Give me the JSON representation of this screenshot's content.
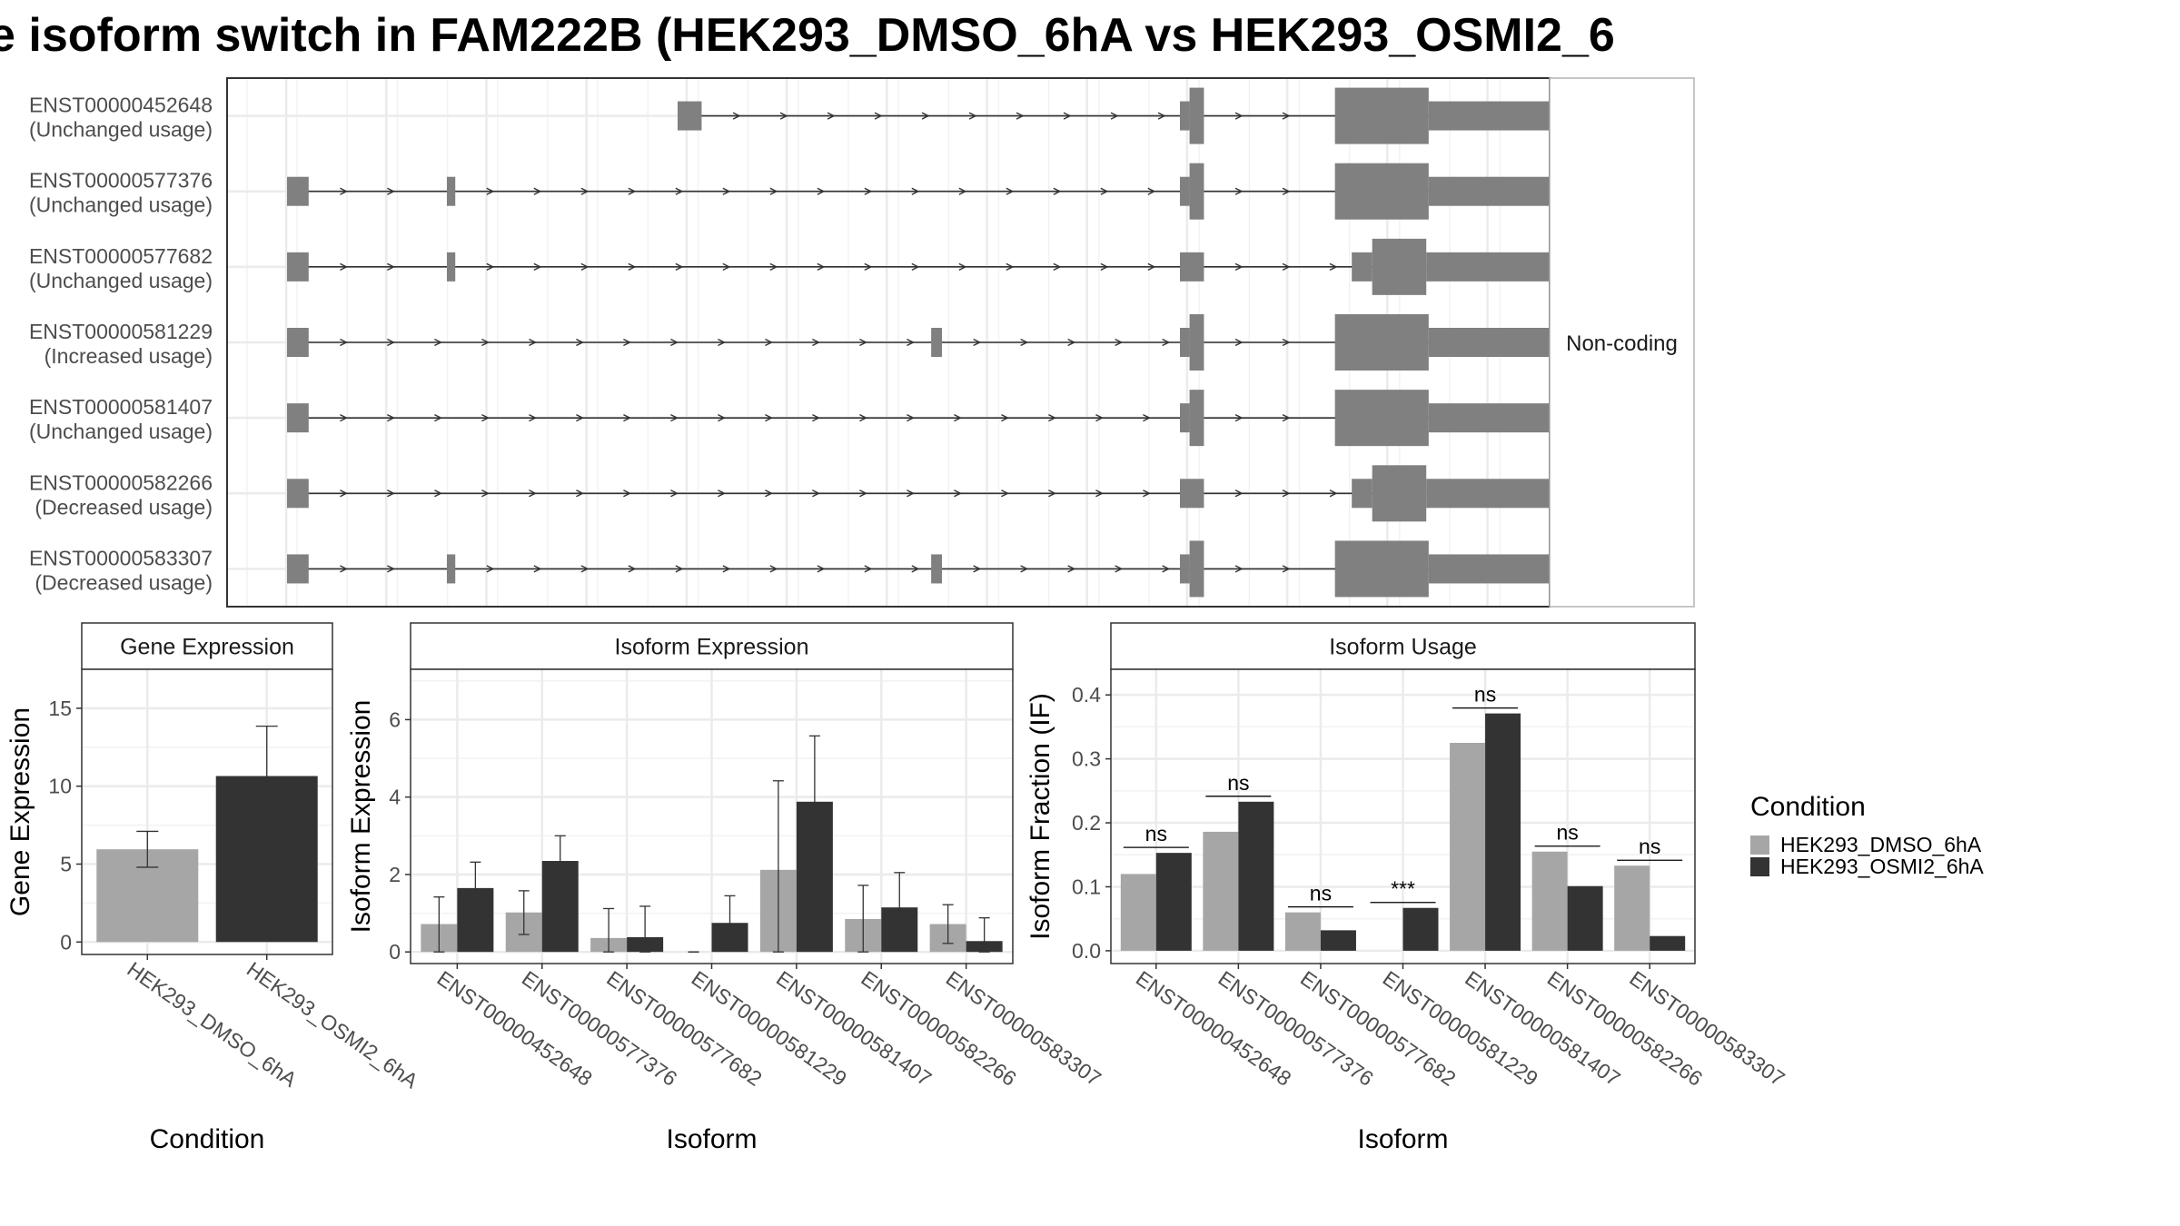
{
  "title": "e isoform switch in FAM222B (HEK293_DMSO_6hA vs HEK293_OSMI2_6",
  "colors": {
    "structure": "#808080",
    "dmso": "#a6a6a6",
    "osmi": "#333333",
    "grid": "#ebebeb",
    "panel_border": "#333333"
  },
  "structure_panel": {
    "facet_label": "Non-coding",
    "genomic_range": [
      0,
      100
    ],
    "transcripts": [
      {
        "id": "ENST00000452648",
        "usage": "(Unchanged usage)",
        "exons": [
          [
            32.5,
            34.5,
            "thin"
          ],
          [
            74.3,
            76.3,
            "cds"
          ],
          [
            87.2,
            95,
            "thick"
          ],
          [
            95,
            109,
            "thin"
          ]
        ]
      },
      {
        "id": "ENST00000577376",
        "usage": "(Unchanged usage)",
        "exons": [
          [
            0,
            1.8,
            "thin"
          ],
          [
            13.3,
            14.0,
            "thin"
          ],
          [
            74.3,
            76.3,
            "cds"
          ],
          [
            87.2,
            95,
            "thick"
          ],
          [
            95,
            109,
            "thin"
          ]
        ]
      },
      {
        "id": "ENST00000577682",
        "usage": "(Unchanged usage)",
        "exons": [
          [
            0,
            1.8,
            "thin"
          ],
          [
            13.3,
            14.0,
            "thin"
          ],
          [
            74.3,
            76.3,
            "thin"
          ],
          [
            88.6,
            90.3,
            "thin"
          ],
          [
            90.3,
            94.8,
            "thick"
          ],
          [
            94.8,
            109,
            "thin"
          ]
        ]
      },
      {
        "id": "ENST00000581229",
        "usage": "(Increased usage)",
        "exons": [
          [
            0,
            1.8,
            "thin"
          ],
          [
            53.6,
            54.5,
            "thin"
          ],
          [
            74.3,
            76.3,
            "cds"
          ],
          [
            87.2,
            95,
            "thick"
          ],
          [
            95,
            109,
            "thin"
          ]
        ]
      },
      {
        "id": "ENST00000581407",
        "usage": "(Unchanged usage)",
        "exons": [
          [
            0,
            1.8,
            "thin"
          ],
          [
            74.3,
            76.3,
            "cds"
          ],
          [
            87.2,
            95,
            "thick"
          ],
          [
            95,
            109,
            "thin"
          ]
        ]
      },
      {
        "id": "ENST00000582266",
        "usage": "(Decreased usage)",
        "exons": [
          [
            0,
            1.8,
            "thin"
          ],
          [
            74.3,
            76.3,
            "thin"
          ],
          [
            88.6,
            90.3,
            "thin"
          ],
          [
            90.3,
            94.8,
            "thick"
          ],
          [
            94.8,
            109,
            "thin"
          ]
        ]
      },
      {
        "id": "ENST00000583307",
        "usage": "(Decreased usage)",
        "exons": [
          [
            0,
            1.8,
            "thin"
          ],
          [
            13.3,
            14.0,
            "thin"
          ],
          [
            53.6,
            54.5,
            "thin"
          ],
          [
            74.3,
            76.3,
            "cds"
          ],
          [
            87.2,
            95,
            "thick"
          ],
          [
            95,
            109,
            "thin"
          ]
        ]
      }
    ]
  },
  "chart_data": [
    {
      "type": "bar",
      "title": "Gene Expression",
      "xlabel": "Condition",
      "ylabel": "Gene Expression",
      "categories": [
        "HEK293_DMSO_6hA",
        "HEK293_OSMI2_6hA"
      ],
      "values": [
        5.95,
        10.65
      ],
      "errors": [
        [
          4.8,
          7.1
        ],
        [
          7.5,
          13.85
        ]
      ],
      "ylim": [
        -0.8,
        17.5
      ],
      "yticks": [
        0,
        5,
        10,
        15
      ],
      "grid": true
    },
    {
      "type": "bar",
      "title": "Isoform Expression",
      "xlabel": "Isoform",
      "ylabel": "Isoform Expression",
      "categories": [
        "ENST00000452648",
        "ENST00000577376",
        "ENST00000577682",
        "ENST00000581229",
        "ENST00000581407",
        "ENST00000582266",
        "ENST00000583307"
      ],
      "series": [
        {
          "name": "HEK293_DMSO_6hA",
          "values": [
            0.72,
            1.02,
            0.36,
            0.0,
            2.12,
            0.85,
            0.72
          ],
          "errors": [
            [
              0.0,
              1.42
            ],
            [
              0.45,
              1.58
            ],
            [
              0.0,
              1.12
            ],
            [
              0.0,
              0.0
            ],
            [
              0.0,
              4.42
            ],
            [
              0.0,
              1.72
            ],
            [
              0.22,
              1.22
            ]
          ]
        },
        {
          "name": "HEK293_OSMI2_6hA",
          "values": [
            1.65,
            2.35,
            0.38,
            0.75,
            3.88,
            1.15,
            0.28
          ],
          "errors": [
            [
              0.95,
              2.32
            ],
            [
              1.72,
              3.0
            ],
            [
              0.0,
              1.18
            ],
            [
              0.05,
              1.45
            ],
            [
              2.2,
              5.58
            ],
            [
              0.22,
              2.05
            ],
            [
              0.0,
              0.88
            ]
          ]
        }
      ],
      "ylim": [
        -0.3,
        7.3
      ],
      "yticks": [
        0,
        2,
        4,
        6
      ],
      "grid": true
    },
    {
      "type": "bar",
      "title": "Isoform Usage",
      "xlabel": "Isoform",
      "ylabel": "Isoform Fraction (IF)",
      "categories": [
        "ENST00000452648",
        "ENST00000577376",
        "ENST00000577682",
        "ENST00000581229",
        "ENST00000581407",
        "ENST00000582266",
        "ENST00000583307"
      ],
      "series": [
        {
          "name": "HEK293_DMSO_6hA",
          "values": [
            0.12,
            0.186,
            0.06,
            0.0,
            0.325,
            0.155,
            0.133
          ]
        },
        {
          "name": "HEK293_OSMI2_6hA",
          "values": [
            0.153,
            0.233,
            0.032,
            0.067,
            0.371,
            0.101,
            0.023
          ]
        }
      ],
      "significance": [
        "ns",
        "ns",
        "ns",
        "***",
        "ns",
        "ns",
        "ns"
      ],
      "ylim": [
        -0.02,
        0.44
      ],
      "yticks": [
        0.0,
        0.1,
        0.2,
        0.3,
        0.4
      ],
      "ytick_labels": [
        "0.0",
        "0.1",
        "0.2",
        "0.3",
        "0.4"
      ],
      "grid": true
    }
  ],
  "legend": {
    "title": "Condition",
    "items": [
      "HEK293_DMSO_6hA",
      "HEK293_OSMI2_6hA"
    ]
  }
}
